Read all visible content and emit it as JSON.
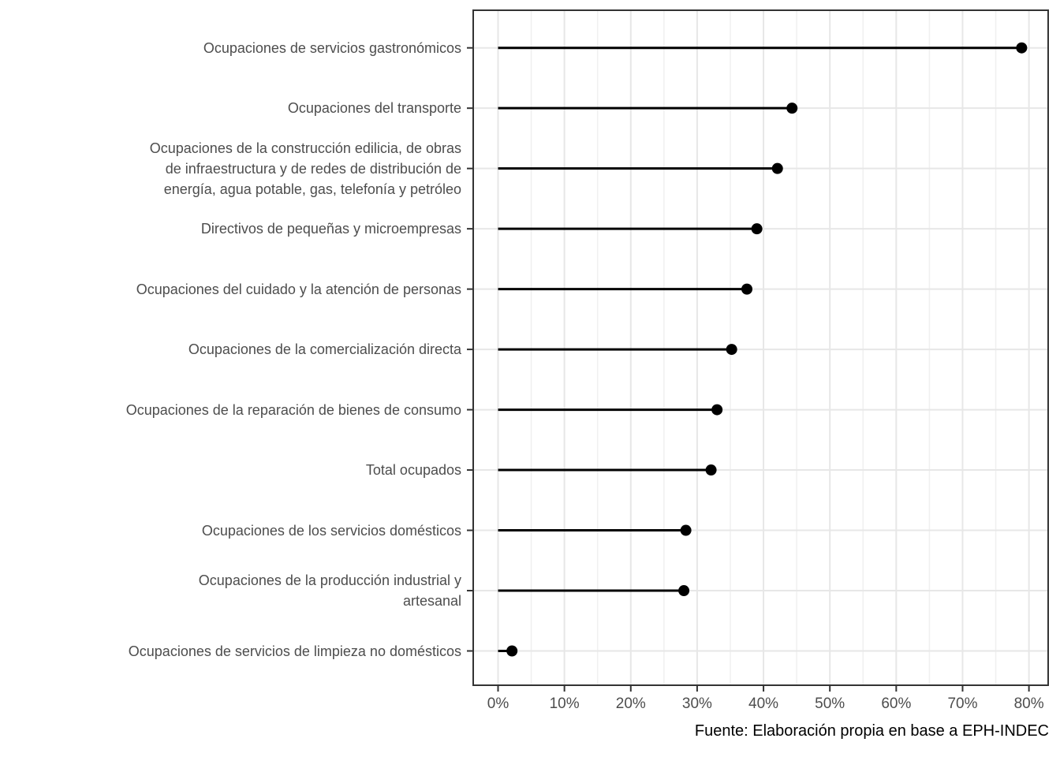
{
  "chart_data": {
    "type": "bar",
    "style": "horizontal lollipop (stem from 0 with end dot)",
    "title": "",
    "xlabel": "",
    "ylabel": "",
    "unit": "%",
    "categories": [
      "Ocupaciones de servicios gastronómicos",
      "Ocupaciones del transporte",
      "Ocupaciones de la construcción edilicia, de obras de infraestructura y de redes de distribución de energía, agua potable, gas, telefonía y petróleo",
      "Directivos de pequeñas y microempresas",
      "Ocupaciones del cuidado y la atención de personas",
      "Ocupaciones de la comercialización directa",
      "Ocupaciones de la reparación de bienes de consumo",
      "Total ocupados",
      "Ocupaciones de los servicios domésticos",
      "Ocupaciones de la producción industrial y artesanal",
      "Ocupaciones de servicios de limpieza no domésticos"
    ],
    "category_lines": [
      [
        "Ocupaciones de servicios gastronómicos"
      ],
      [
        "Ocupaciones del transporte"
      ],
      [
        "Ocupaciones de la construcción edilicia, de obras",
        "de infraestructura y de redes de distribución de",
        "energía, agua potable, gas, telefonía y petróleo"
      ],
      [
        "Directivos de pequeñas y microempresas"
      ],
      [
        "Ocupaciones del cuidado y la atención de personas"
      ],
      [
        "Ocupaciones de la comercialización directa"
      ],
      [
        "Ocupaciones de la reparación de bienes de consumo"
      ],
      [
        "Total ocupados"
      ],
      [
        "Ocupaciones de los servicios domésticos"
      ],
      [
        "Ocupaciones de la producción industrial y",
        "artesanal"
      ],
      [
        "Ocupaciones de servicios de limpieza no domésticos"
      ]
    ],
    "values": [
      78.9,
      44.3,
      42.1,
      39.0,
      37.5,
      35.2,
      33.0,
      32.1,
      28.3,
      28.0,
      2.1
    ],
    "x_tick_labels": [
      "0%",
      "10%",
      "20%",
      "30%",
      "40%",
      "50%",
      "60%",
      "70%",
      "80%"
    ],
    "x_tick_values": [
      0,
      10,
      20,
      30,
      40,
      50,
      60,
      70,
      80
    ],
    "x_minor_tick_values": [
      5,
      15,
      25,
      35,
      45,
      55,
      65,
      75
    ],
    "xlim": [
      -3.7,
      82.9
    ],
    "grid": "on",
    "legend": "none",
    "caption": "Fuente: Elaboración propia en base a EPH-INDEC",
    "colors": {
      "background": "#ffffff",
      "panel_border": "#333333",
      "grid_major": "#e7e7e7",
      "grid_minor": "#f0f0f0",
      "axis_text": "#4d4d4d",
      "tick_marks": "#333333",
      "lollipop": "#000000",
      "caption_text": "#000000"
    }
  }
}
